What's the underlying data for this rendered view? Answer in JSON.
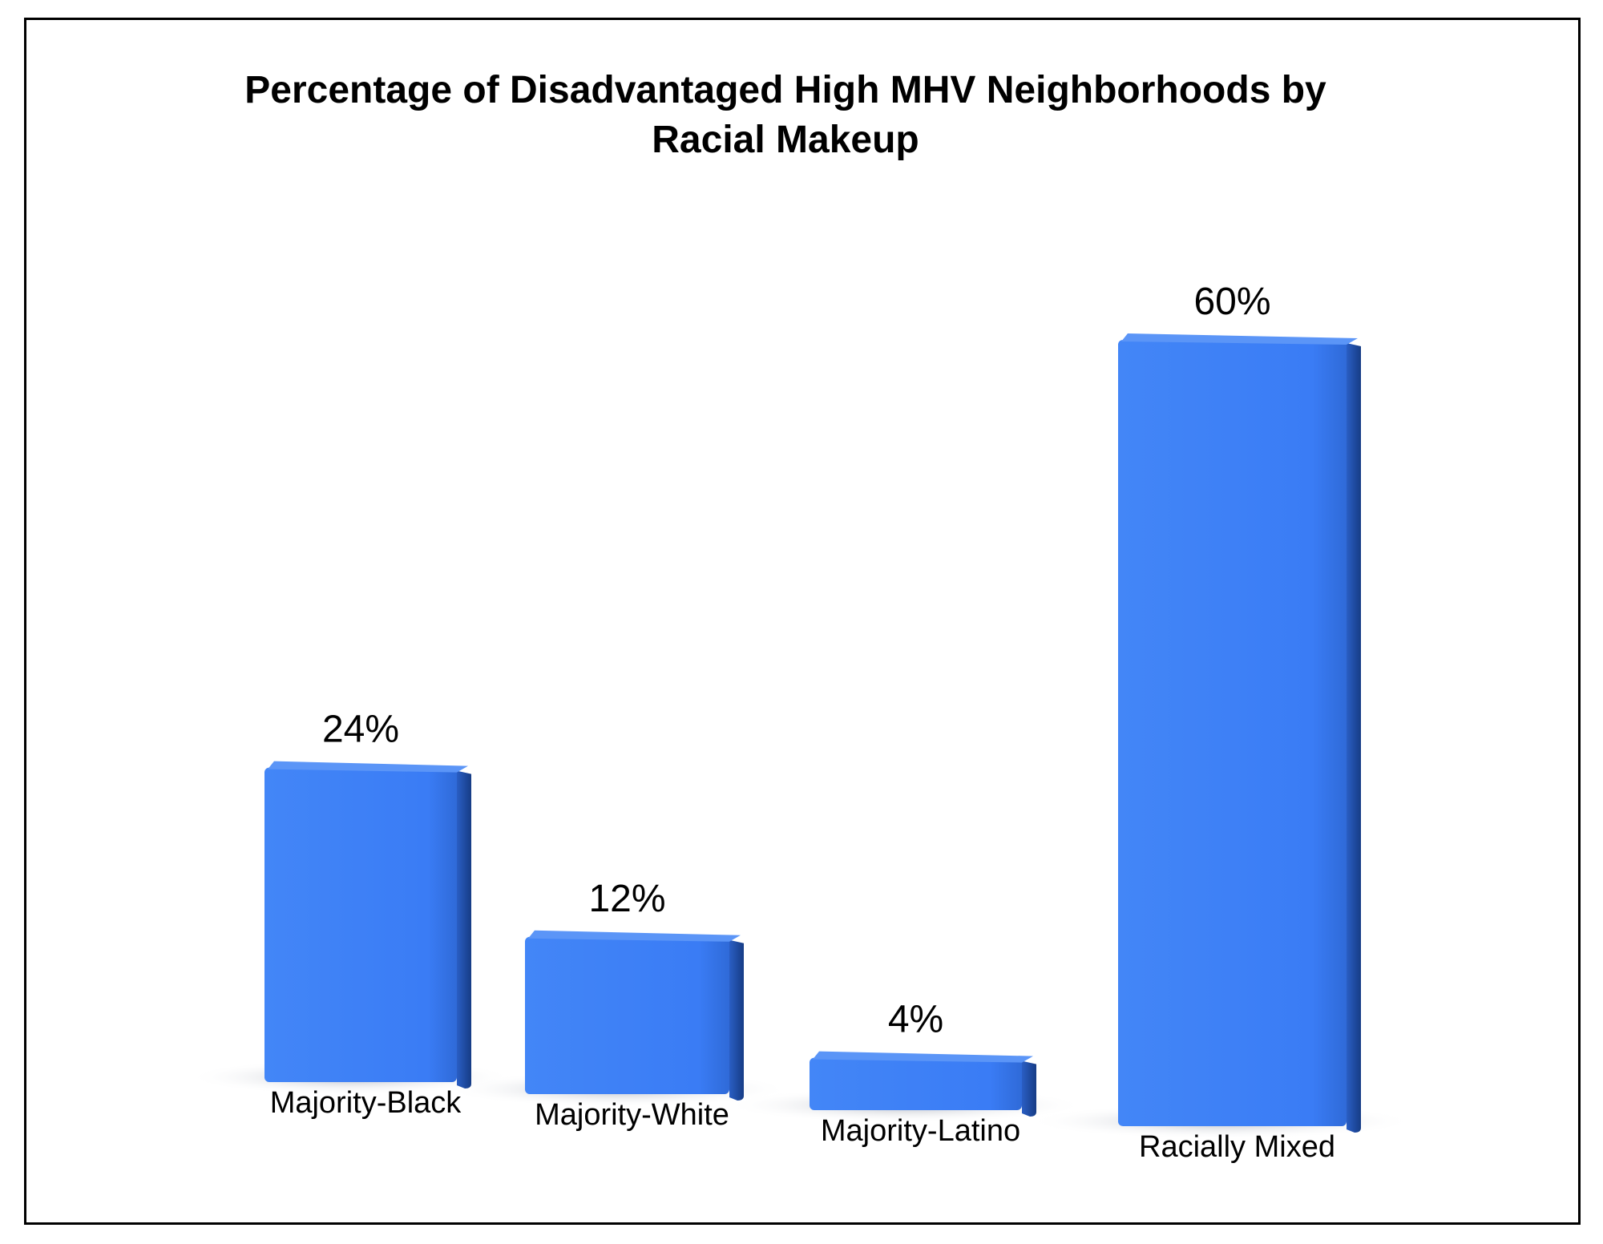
{
  "chart_data": {
    "type": "bar",
    "title": "Percentage of Disadvantaged High MHV Neighborhoods by Racial Makeup",
    "title_lines": [
      "Percentage of Disadvantaged High MHV Neighborhoods by",
      "Racial Makeup"
    ],
    "categories": [
      "Majority-Black",
      "Majority-White",
      "Majority-Latino",
      "Racially Mixed"
    ],
    "values": [
      24,
      12,
      4,
      60
    ],
    "value_labels": [
      "24%",
      "12%",
      "4%",
      "60%"
    ],
    "xlabel": "",
    "ylabel": "",
    "ylim": [
      0,
      60
    ],
    "grid": false,
    "legend": "none",
    "colors": {
      "bar_front": "#3a7cf5",
      "bar_side": "#1f4fa8",
      "bar_top": "#5b95f7",
      "shadow": "#9aa3b5"
    }
  }
}
